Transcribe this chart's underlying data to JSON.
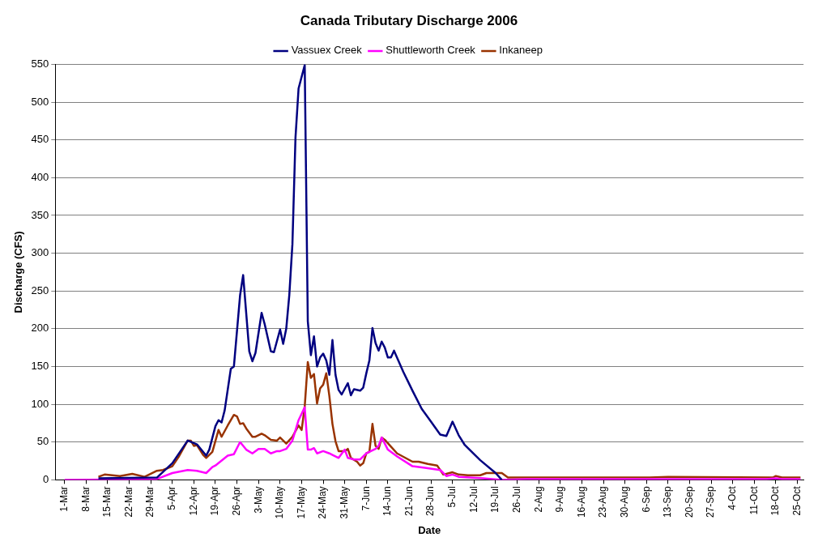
{
  "chart_data": {
    "type": "line",
    "title": "Canada Tributary Discharge 2006",
    "xlabel": "Date",
    "ylabel": "Discharge (CFS)",
    "legend": "top",
    "grid": "y",
    "xlim": [
      "2006-02-26",
      "2006-10-27"
    ],
    "xticks": [
      {
        "value": "2006-03-01",
        "label": "1-Mar"
      },
      {
        "value": "2006-03-08",
        "label": "8-Mar"
      },
      {
        "value": "2006-03-15",
        "label": "15-Mar"
      },
      {
        "value": "2006-03-22",
        "label": "22-Mar"
      },
      {
        "value": "2006-03-29",
        "label": "29-Mar"
      },
      {
        "value": "2006-04-05",
        "label": "5-Apr"
      },
      {
        "value": "2006-04-12",
        "label": "12-Apr"
      },
      {
        "value": "2006-04-19",
        "label": "19-Apr"
      },
      {
        "value": "2006-04-26",
        "label": "26-Apr"
      },
      {
        "value": "2006-05-03",
        "label": "3-May"
      },
      {
        "value": "2006-05-10",
        "label": "10-May"
      },
      {
        "value": "2006-05-17",
        "label": "17-May"
      },
      {
        "value": "2006-05-24",
        "label": "24-May"
      },
      {
        "value": "2006-05-31",
        "label": "31-May"
      },
      {
        "value": "2006-06-07",
        "label": "7-Jun"
      },
      {
        "value": "2006-06-14",
        "label": "14-Jun"
      },
      {
        "value": "2006-06-21",
        "label": "21-Jun"
      },
      {
        "value": "2006-06-28",
        "label": "28-Jun"
      },
      {
        "value": "2006-07-05",
        "label": "5-Jul"
      },
      {
        "value": "2006-07-12",
        "label": "12-Jul"
      },
      {
        "value": "2006-07-19",
        "label": "19-Jul"
      },
      {
        "value": "2006-07-26",
        "label": "26-Jul"
      },
      {
        "value": "2006-08-02",
        "label": "2-Aug"
      },
      {
        "value": "2006-08-09",
        "label": "9-Aug"
      },
      {
        "value": "2006-08-16",
        "label": "16-Aug"
      },
      {
        "value": "2006-08-23",
        "label": "23-Aug"
      },
      {
        "value": "2006-08-30",
        "label": "30-Aug"
      },
      {
        "value": "2006-09-06",
        "label": "6-Sep"
      },
      {
        "value": "2006-09-13",
        "label": "13-Sep"
      },
      {
        "value": "2006-09-20",
        "label": "20-Sep"
      },
      {
        "value": "2006-09-27",
        "label": "27-Sep"
      },
      {
        "value": "2006-10-04",
        "label": "4-Oct"
      },
      {
        "value": "2006-10-11",
        "label": "11-Oct"
      },
      {
        "value": "2006-10-18",
        "label": "18-Oct"
      },
      {
        "value": "2006-10-25",
        "label": "25-Oct"
      }
    ],
    "ylim": [
      0,
      550
    ],
    "yticks": [
      0,
      50,
      100,
      150,
      200,
      250,
      300,
      350,
      400,
      450,
      500,
      550
    ],
    "series": [
      {
        "name": "Vassuex Creek",
        "color": "#000080",
        "x": [
          "2006-03-12",
          "2006-03-31",
          "2006-04-05",
          "2006-04-10",
          "2006-04-13",
          "2006-04-16",
          "2006-04-17",
          "2006-04-19",
          "2006-04-20",
          "2006-04-21",
          "2006-04-22",
          "2006-04-24",
          "2006-04-25",
          "2006-04-27",
          "2006-04-28",
          "2006-04-30",
          "2006-05-01",
          "2006-05-02",
          "2006-05-04",
          "2006-05-05",
          "2006-05-07",
          "2006-05-08",
          "2006-05-10",
          "2006-05-11",
          "2006-05-12",
          "2006-05-13",
          "2006-05-14",
          "2006-05-15",
          "2006-05-16",
          "2006-05-18",
          "2006-05-19",
          "2006-05-20",
          "2006-05-21",
          "2006-05-22",
          "2006-05-23",
          "2006-05-24",
          "2006-05-25",
          "2006-05-26",
          "2006-05-27",
          "2006-05-28",
          "2006-05-29",
          "2006-05-30",
          "2006-06-01",
          "2006-06-02",
          "2006-06-03",
          "2006-06-05",
          "2006-06-06",
          "2006-06-07",
          "2006-06-08",
          "2006-06-09",
          "2006-06-10",
          "2006-06-11",
          "2006-06-12",
          "2006-06-13",
          "2006-06-14",
          "2006-06-15",
          "2006-06-16",
          "2006-06-19",
          "2006-06-22",
          "2006-06-25",
          "2006-06-28",
          "2006-07-01",
          "2006-07-03",
          "2006-07-05",
          "2006-07-07",
          "2006-07-09",
          "2006-07-14",
          "2006-07-19",
          "2006-07-21"
        ],
        "values": [
          2,
          3,
          22,
          52,
          47,
          32,
          40,
          71,
          79,
          76,
          92,
          147,
          150,
          244,
          271,
          170,
          157,
          168,
          221,
          206,
          170,
          169,
          199,
          180,
          200,
          245,
          312,
          453,
          518,
          549,
          210,
          165,
          190,
          150,
          162,
          167,
          158,
          139,
          185,
          139,
          119,
          113,
          128,
          112,
          120,
          118,
          122,
          141,
          158,
          201,
          181,
          171,
          183,
          175,
          162,
          162,
          171,
          143,
          118,
          94,
          77,
          60,
          58,
          77,
          59,
          46,
          26,
          9,
          0
        ]
      },
      {
        "name": "Shuttleworth Creek",
        "color": "#ff00ff",
        "x": [
          "2006-03-01",
          "2006-03-31",
          "2006-04-05",
          "2006-04-10",
          "2006-04-13",
          "2006-04-16",
          "2006-04-18",
          "2006-04-19",
          "2006-04-23",
          "2006-04-25",
          "2006-04-27",
          "2006-04-29",
          "2006-05-01",
          "2006-05-03",
          "2006-05-05",
          "2006-05-07",
          "2006-05-09",
          "2006-05-10",
          "2006-05-12",
          "2006-05-14",
          "2006-05-16",
          "2006-05-18",
          "2006-05-19",
          "2006-05-20",
          "2006-05-21",
          "2006-05-22",
          "2006-05-24",
          "2006-05-26",
          "2006-05-27",
          "2006-05-29",
          "2006-05-31",
          "2006-06-01",
          "2006-06-03",
          "2006-06-05",
          "2006-06-07",
          "2006-06-10",
          "2006-06-11",
          "2006-06-12",
          "2006-06-14",
          "2006-06-17",
          "2006-06-22",
          "2006-06-26",
          "2006-07-01",
          "2006-07-03",
          "2006-07-05",
          "2006-07-07",
          "2006-07-15",
          "2006-07-21",
          "2006-07-29",
          "2006-10-15",
          "2006-10-18",
          "2006-10-20",
          "2006-10-26"
        ],
        "values": [
          0,
          1,
          9,
          13,
          12,
          9,
          17,
          19,
          32,
          34,
          50,
          40,
          35,
          41,
          41,
          35,
          38,
          38,
          41,
          52,
          79,
          96,
          40,
          40,
          42,
          35,
          38,
          35,
          33,
          29,
          40,
          29,
          27,
          27,
          35,
          41,
          45,
          56,
          40,
          31,
          18,
          16,
          13,
          5,
          7,
          4,
          2,
          0,
          1,
          1,
          2,
          1,
          1
        ]
      },
      {
        "name": "Inkaneep",
        "color": "#993300",
        "x": [
          "2006-03-12",
          "2006-03-14",
          "2006-03-19",
          "2006-03-23",
          "2006-03-27",
          "2006-03-31",
          "2006-04-02",
          "2006-04-05",
          "2006-04-07",
          "2006-04-10",
          "2006-04-11",
          "2006-04-12",
          "2006-04-13",
          "2006-04-15",
          "2006-04-16",
          "2006-04-18",
          "2006-04-20",
          "2006-04-21",
          "2006-04-23",
          "2006-04-25",
          "2006-04-26",
          "2006-04-27",
          "2006-04-28",
          "2006-04-29",
          "2006-05-01",
          "2006-05-02",
          "2006-05-04",
          "2006-05-05",
          "2006-05-07",
          "2006-05-09",
          "2006-05-10",
          "2006-05-12",
          "2006-05-14",
          "2006-05-16",
          "2006-05-17",
          "2006-05-18",
          "2006-05-19",
          "2006-05-20",
          "2006-05-21",
          "2006-05-22",
          "2006-05-23",
          "2006-05-24",
          "2006-05-25",
          "2006-05-26",
          "2006-05-27",
          "2006-05-28",
          "2006-05-29",
          "2006-05-31",
          "2006-06-01",
          "2006-06-02",
          "2006-06-04",
          "2006-06-05",
          "2006-06-06",
          "2006-06-07",
          "2006-06-08",
          "2006-06-09",
          "2006-06-10",
          "2006-06-11",
          "2006-06-12",
          "2006-06-13",
          "2006-06-15",
          "2006-06-17",
          "2006-06-22",
          "2006-06-24",
          "2006-06-27",
          "2006-06-30",
          "2006-07-02",
          "2006-07-05",
          "2006-07-07",
          "2006-07-10",
          "2006-07-14",
          "2006-07-16",
          "2006-07-21",
          "2006-07-23",
          "2006-09-07",
          "2006-09-13",
          "2006-10-17",
          "2006-10-18",
          "2006-10-20",
          "2006-10-26"
        ],
        "values": [
          4,
          7,
          5,
          8,
          4,
          12,
          13,
          18,
          30,
          52,
          52,
          45,
          46,
          33,
          29,
          37,
          66,
          57,
          72,
          86,
          84,
          74,
          75,
          68,
          57,
          57,
          61,
          59,
          53,
          52,
          56,
          48,
          57,
          72,
          66,
          97,
          156,
          135,
          140,
          101,
          121,
          126,
          141,
          111,
          74,
          51,
          38,
          38,
          41,
          29,
          24,
          19,
          22,
          35,
          37,
          74,
          45,
          41,
          56,
          53,
          44,
          35,
          24,
          24,
          21,
          19,
          7,
          10,
          7,
          6,
          6,
          9,
          9,
          3,
          3,
          4,
          3,
          5,
          3,
          3
        ]
      }
    ]
  }
}
